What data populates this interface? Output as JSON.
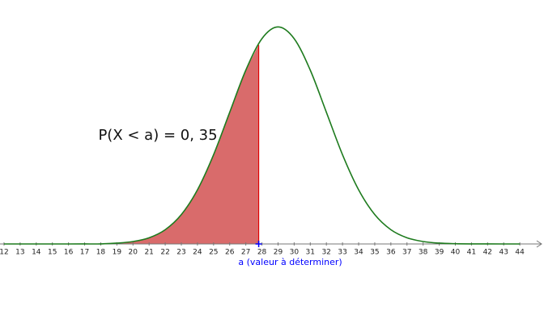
{
  "chart_data": {
    "type": "area",
    "annotation": "P(X < a) = 0, 35",
    "x": [
      12,
      13,
      14,
      15,
      16,
      17,
      18,
      19,
      20,
      21,
      22,
      23,
      24,
      25,
      26,
      27,
      28,
      29,
      30,
      31,
      32,
      33,
      34,
      35,
      36,
      37,
      38,
      39,
      40,
      41,
      42,
      43,
      44
    ],
    "values": [
      0,
      0,
      0,
      0,
      0,
      1e-05,
      4e-05,
      0.00051,
      0.00148,
      0.0038,
      0.00874,
      0.018,
      0.03317,
      0.05467,
      0.08066,
      0.10648,
      0.12579,
      0.13298,
      0.12579,
      0.10648,
      0.08066,
      0.05467,
      0.03317,
      0.018,
      0.00874,
      0.0038,
      0.00148,
      0.00051,
      0.00016,
      4e-05,
      1e-05,
      0,
      0
    ],
    "color": "#1e7b1e",
    "fill": "#d96b6b",
    "xlim": [
      11.75,
      45.4
    ],
    "ylim": [
      0,
      0.1475
    ],
    "xticks": [
      12,
      13,
      14,
      15,
      16,
      17,
      18,
      19,
      20,
      21,
      22,
      23,
      24,
      25,
      26,
      27,
      28,
      29,
      30,
      31,
      32,
      33,
      34,
      35,
      36,
      37,
      38,
      39,
      40,
      41,
      42,
      43,
      44
    ],
    "a": {
      "value": 27.8,
      "label": "a (valeur à déterminer)",
      "color": "#0000ff"
    }
  }
}
